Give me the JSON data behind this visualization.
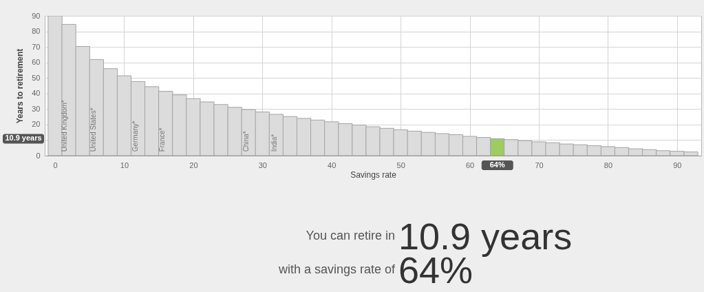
{
  "chart_data": {
    "type": "bar",
    "xlabel": "Savings rate",
    "ylabel": "Years to retirement",
    "x": [
      0,
      2,
      4,
      6,
      8,
      10,
      12,
      14,
      16,
      18,
      20,
      22,
      24,
      26,
      28,
      30,
      32,
      34,
      36,
      38,
      40,
      42,
      44,
      46,
      48,
      50,
      52,
      54,
      56,
      58,
      60,
      62,
      64,
      66,
      68,
      70,
      72,
      74,
      76,
      78,
      80,
      82,
      84,
      86,
      88,
      90,
      92
    ],
    "values": [
      90,
      84.5,
      70.3,
      61.9,
      56.0,
      51.4,
      47.7,
      44.4,
      41.4,
      39.1,
      36.7,
      34.6,
      32.9,
      31.1,
      29.6,
      28.1,
      26.6,
      25.2,
      24.0,
      22.9,
      21.8,
      20.6,
      19.7,
      18.6,
      17.6,
      16.7,
      15.8,
      15.0,
      14.2,
      13.5,
      12.4,
      11.7,
      10.9,
      10.3,
      9.6,
      8.9,
      8.3,
      7.5,
      7.0,
      6.4,
      5.8,
      5.2,
      4.4,
      3.9,
      3.2,
      2.8,
      2.4
    ],
    "colors": [
      "#dcdcdc",
      "#dcdcdc",
      "#dcdcdc",
      "#dcdcdc",
      "#dcdcdc",
      "#dcdcdc",
      "#dcdcdc",
      "#dcdcdc",
      "#dcdcdc",
      "#dcdcdc",
      "#dcdcdc",
      "#dcdcdc",
      "#dcdcdc",
      "#dcdcdc",
      "#dcdcdc",
      "#dcdcdc",
      "#dcdcdc",
      "#dcdcdc",
      "#dcdcdc",
      "#dcdcdc",
      "#dcdcdc",
      "#dcdcdc",
      "#dcdcdc",
      "#dcdcdc",
      "#dcdcdc",
      "#dcdcdc",
      "#dcdcdc",
      "#dcdcdc",
      "#dcdcdc",
      "#dcdcdc",
      "#dcdcdc",
      "#dcdcdc",
      "#9fcc5f",
      "#dcdcdc",
      "#dcdcdc",
      "#dcdcdc",
      "#dcdcdc",
      "#dcdcdc",
      "#dcdcdc",
      "#dcdcdc",
      "#dcdcdc",
      "#dcdcdc",
      "#dcdcdc",
      "#dcdcdc",
      "#dcdcdc",
      "#dcdcdc",
      "#dcdcdc"
    ],
    "xlim": [
      -1,
      93
    ],
    "xticks": [
      0,
      10,
      20,
      30,
      40,
      50,
      60,
      70,
      80,
      90
    ],
    "ylim": [
      0,
      90
    ],
    "yticks": [
      0,
      {
        "value": 10,
        "label": null
      },
      20,
      30,
      40,
      50,
      60,
      70,
      80,
      90
    ],
    "grid": true,
    "annotations": [
      {
        "text": "United Kingdom*",
        "x": 1.4,
        "y": 2.5
      },
      {
        "text": "United States*",
        "x": 5.6,
        "y": 2.5
      },
      {
        "text": "Germany*",
        "x": 11.6,
        "y": 2.5
      },
      {
        "text": "France*",
        "x": 15.5,
        "y": 2.5
      },
      {
        "text": "China*",
        "x": 27.7,
        "y": 2.5
      },
      {
        "text": "India*",
        "x": 31.8,
        "y": 2.5
      },
      {
        "text": "64%",
        "x": 64,
        "y": 10.9
      },
      "10.9 years",
      "You can retire in",
      "10.9 years",
      "with a savings rate of",
      "64%"
    ]
  }
}
